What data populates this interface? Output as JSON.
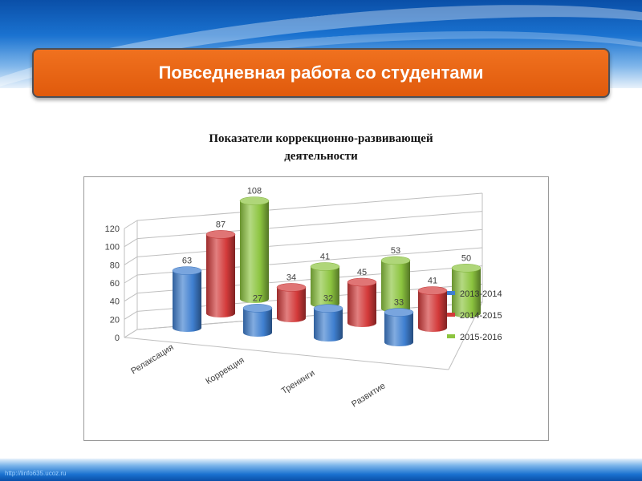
{
  "header": {
    "title": "Повседневная работа со студентами"
  },
  "footer": {
    "url": "http://linfo635.ucoz.ru"
  },
  "chart_data": {
    "type": "bar",
    "variant": "3d-cylinder",
    "title_line1": "Показатели коррекционно-развивающей",
    "title_line2": "деятельности",
    "categories": [
      "Релаксация",
      "Коррекция",
      "Тренинги",
      "Развитие"
    ],
    "series": [
      {
        "name": "2013-2014",
        "values": [
          63,
          27,
          32,
          33
        ],
        "color": "#3f7fd0"
      },
      {
        "name": "2014-2015",
        "values": [
          87,
          34,
          45,
          41
        ],
        "color": "#d33a3a"
      },
      {
        "name": "2015-2016",
        "values": [
          108,
          41,
          53,
          50
        ],
        "color": "#8cc43f"
      }
    ],
    "y_ticks": [
      "0",
      "20",
      "40",
      "60",
      "80",
      "100",
      "120"
    ],
    "ylim": [
      0,
      120
    ],
    "grid": true,
    "legend_position": "right"
  }
}
